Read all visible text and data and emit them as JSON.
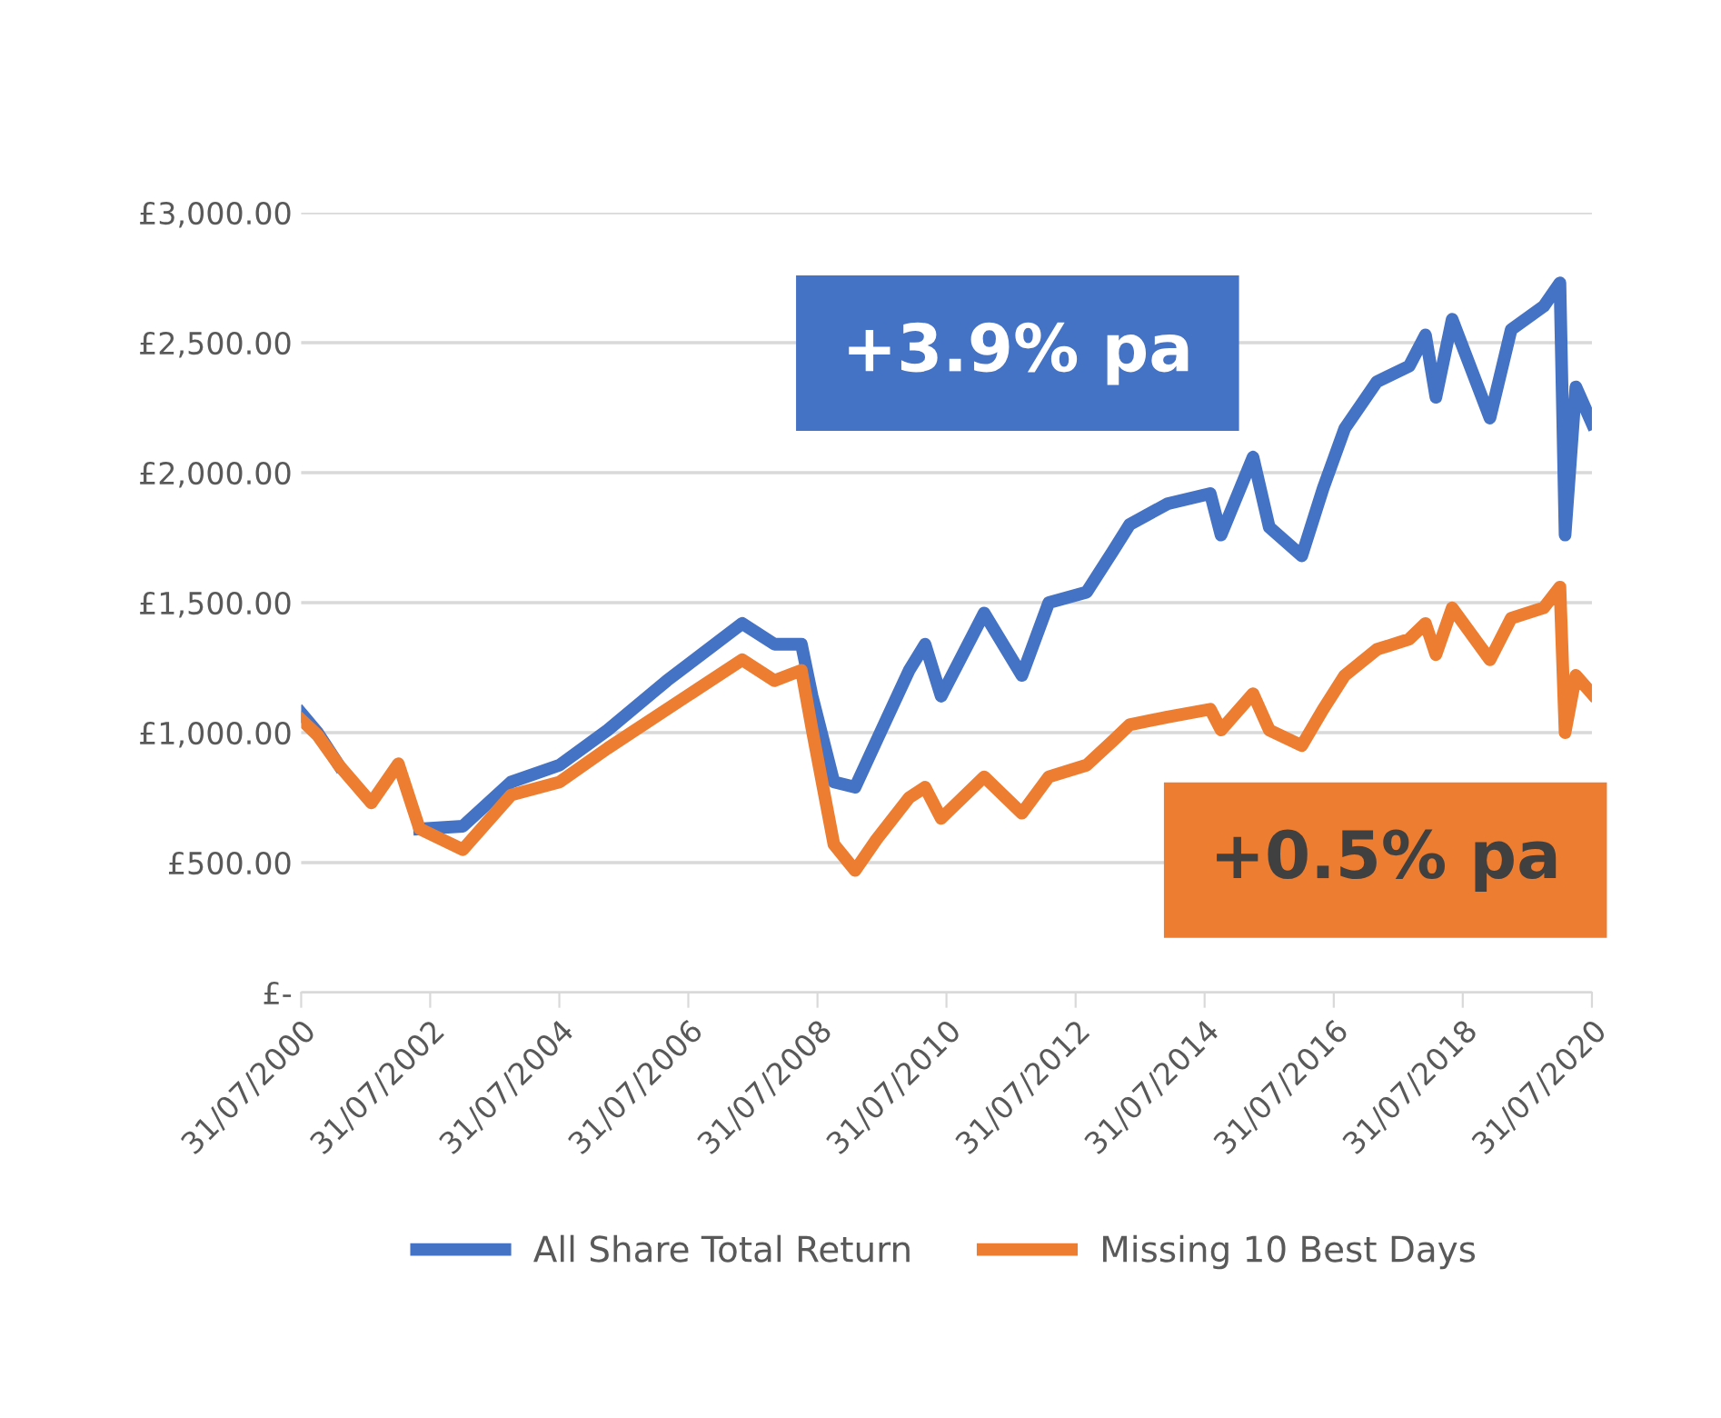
{
  "chart_data": {
    "type": "line",
    "x": [
      "2000-07-31",
      "2000-11",
      "2001-03",
      "2001-09",
      "2002-02",
      "2002-06",
      "2003-02",
      "2003-11",
      "2004-08",
      "2005-05",
      "2006-04",
      "2007-06",
      "2007-12",
      "2008-05",
      "2008-07",
      "2008-11",
      "2009-03",
      "2009-07",
      "2010-01",
      "2010-04",
      "2010-07",
      "2011-03",
      "2011-10",
      "2012-03",
      "2012-10",
      "2013-03",
      "2013-06",
      "2014-01",
      "2014-09",
      "2014-11",
      "2015-05",
      "2015-08",
      "2016-02",
      "2016-06",
      "2016-10",
      "2017-04",
      "2017-10",
      "2018-01",
      "2018-03",
      "2018-06",
      "2019-01",
      "2019-05",
      "2019-11",
      "2020-02",
      "2020-03",
      "2020-05",
      "2020-07-31"
    ],
    "series": [
      {
        "name": "All Share Total Return",
        "color": "#4472c4",
        "values": [
          1075,
          1000,
          875,
          null,
          null,
          630,
          640,
          810,
          875,
          1010,
          1200,
          1420,
          1340,
          1340,
          1140,
          810,
          790,
          970,
          1240,
          1340,
          1140,
          1460,
          1220,
          1500,
          1540,
          1700,
          1800,
          1880,
          1920,
          1760,
          2060,
          1790,
          1680,
          1940,
          2170,
          2350,
          2410,
          2530,
          2290,
          2590,
          2210,
          2550,
          2640,
          2730,
          1760,
          2330,
          2190
        ]
      },
      {
        "name": "Missing 10 Best Days",
        "color": "#ed7d31",
        "values": [
          1050,
          990,
          875,
          730,
          880,
          630,
          550,
          760,
          810,
          940,
          1090,
          1280,
          1200,
          1240,
          1010,
          570,
          470,
          590,
          750,
          790,
          670,
          830,
          690,
          830,
          875,
          970,
          1030,
          1060,
          1090,
          1010,
          1150,
          1010,
          950,
          1090,
          1220,
          1320,
          1360,
          1420,
          1300,
          1480,
          1280,
          1440,
          1480,
          1560,
          1000,
          1220,
          1150
        ]
      }
    ],
    "xlim": [
      "2000-07-31",
      "2020-07-31"
    ],
    "xticks": [
      {
        "value": "2000-07-31",
        "label": "31/07/2000"
      },
      {
        "value": "2002-07-31",
        "label": "31/07/2002"
      },
      {
        "value": "2004-07-31",
        "label": "31/07/2004"
      },
      {
        "value": "2006-07-31",
        "label": "31/07/2006"
      },
      {
        "value": "2008-07-31",
        "label": "31/07/2008"
      },
      {
        "value": "2010-07-31",
        "label": "31/07/2010"
      },
      {
        "value": "2012-07-31",
        "label": "31/07/2012"
      },
      {
        "value": "2014-07-31",
        "label": "31/07/2014"
      },
      {
        "value": "2016-07-31",
        "label": "31/07/2016"
      },
      {
        "value": "2018-07-31",
        "label": "31/07/2018"
      },
      {
        "value": "2020-07-31",
        "label": "31/07/2020"
      }
    ],
    "ylim": [
      0,
      3000
    ],
    "yticks": [
      {
        "value": 0,
        "label": "£-"
      },
      {
        "value": 500,
        "label": "£500.00"
      },
      {
        "value": 1000,
        "label": "£1,000.00"
      },
      {
        "value": 1500,
        "label": "£1,500.00"
      },
      {
        "value": 2000,
        "label": "£2,000.00"
      },
      {
        "value": 2500,
        "label": "£2,500.00"
      },
      {
        "value": 3000,
        "label": "£3,000.00"
      }
    ],
    "grid": "y",
    "legend": "bottom",
    "marker": "none",
    "line_style": "solid",
    "annotations": [
      "+3.9% pa",
      "+0.5% pa"
    ]
  }
}
